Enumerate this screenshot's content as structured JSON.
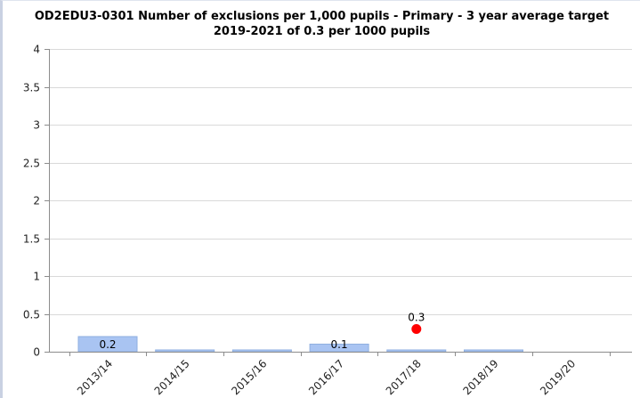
{
  "chart_data": {
    "type": "bar",
    "title": "OD2EDU3-0301 Number of exclusions per 1,000 pupils - Primary - 3 year average target",
    "subtitle": "2019-2021 of 0.3 per 1000 pupils",
    "xlabel": "",
    "ylabel": "",
    "categories": [
      "2013/14",
      "2014/15",
      "2015/16",
      "2016/17",
      "2017/18",
      "2018/19",
      "2019/20"
    ],
    "values": [
      0.2,
      0.01,
      0.01,
      0.1,
      0.01,
      0.01,
      null
    ],
    "data_labels": [
      "0.2",
      "",
      "",
      "0.1",
      "",
      "",
      ""
    ],
    "ylim": [
      0,
      4
    ],
    "yticks": [
      0,
      0.5,
      1,
      1.5,
      2,
      2.5,
      3,
      3.5,
      4
    ],
    "ytick_labels": [
      "0",
      "0.5",
      "1",
      "1.5",
      "2",
      "2.5",
      "3",
      "3.5",
      "4"
    ],
    "grid": true,
    "legend": "none",
    "target_marker": {
      "category": "2017/18",
      "value": 0.3,
      "label": "0.3"
    },
    "colors": {
      "bar_fill": "#a9c4f2",
      "bar_stroke": "#8fafe0",
      "marker": "#ff0000",
      "grid": "#d9d9d9",
      "axis": "#8c8c8c"
    }
  }
}
